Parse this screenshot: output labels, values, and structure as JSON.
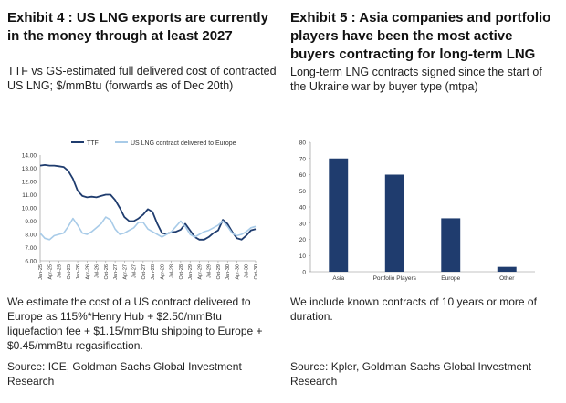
{
  "left": {
    "title": "Exhibit 4 : US LNG exports are currently in the money through at least 2027",
    "subtitle": "TTF vs GS-estimated full delivered cost of contracted US LNG; $/mmBtu (forwards as of Dec 20th)",
    "note": "We estimate the cost of a US contract delivered to Europe as 115%*Henry Hub + $2.50/mmBtu liquefaction fee + $1.15/mmBtu shipping to Europe + $0.45/mmBtu regasification.",
    "source": "Source: ICE, Goldman Sachs Global Investment Research"
  },
  "right": {
    "title": "Exhibit 5 : Asia companies and portfolio players have been the most active buyers contracting for long-term LNG",
    "subtitle": "Long-term LNG contracts signed since the start of the Ukraine war by buyer type (mtpa)",
    "note": "We include known contracts of 10 years or more of duration.",
    "source": "Source: Kpler, Goldman Sachs Global Investment Research"
  },
  "chart_data": [
    {
      "type": "line",
      "ylim": [
        6,
        14
      ],
      "yticks": [
        "14.00",
        "13.00",
        "12.00",
        "11.00",
        "10.00",
        "9.00",
        "8.00",
        "7.00",
        "6.00"
      ],
      "xticks": [
        "Jan-25",
        "Apr-25",
        "Jul-25",
        "Oct-25",
        "Jan-26",
        "Apr-26",
        "Jul-26",
        "Oct-26",
        "Jan-27",
        "Apr-27",
        "Jul-27",
        "Oct-27",
        "Jan-28",
        "Apr-28",
        "Jul-28",
        "Oct-28",
        "Jan-29",
        "Apr-29",
        "Jul-29",
        "Oct-29",
        "Jan-30",
        "Apr-30",
        "Jul-30",
        "Oct-30"
      ],
      "legend_position": "top",
      "series": [
        {
          "name": "TTF",
          "color": "#1f3c6e",
          "x": [
            0,
            0.5,
            1,
            1.5,
            2,
            2.5,
            3,
            3.5,
            4,
            4.5,
            5,
            5.5,
            6,
            6.5,
            7,
            7.5,
            8,
            8.5,
            9,
            9.5,
            10,
            10.5,
            11,
            11.5,
            12,
            12.5,
            13,
            13.5,
            14,
            14.5,
            15,
            15.5,
            16,
            16.5,
            17,
            17.5,
            18,
            18.5,
            19,
            19.5,
            20,
            20.5,
            21,
            21.5,
            22,
            22.5,
            23
          ],
          "values": [
            13.2,
            13.25,
            13.2,
            13.2,
            13.15,
            13.1,
            12.8,
            12.2,
            11.3,
            10.9,
            10.8,
            10.85,
            10.8,
            10.9,
            11.0,
            11.0,
            10.6,
            10.0,
            9.3,
            9.0,
            9.0,
            9.2,
            9.5,
            9.9,
            9.7,
            8.8,
            8.1,
            8.05,
            8.15,
            8.2,
            8.35,
            8.8,
            8.3,
            7.8,
            7.6,
            7.6,
            7.8,
            8.1,
            8.3,
            9.1,
            8.8,
            8.2,
            7.7,
            7.6,
            7.9,
            8.3,
            8.4
          ]
        },
        {
          "name": "US LNG contract delivered to Europe",
          "color": "#a8cbe8",
          "x": [
            0,
            0.5,
            1,
            1.5,
            2,
            2.5,
            3,
            3.5,
            4,
            4.5,
            5,
            5.5,
            6,
            6.5,
            7,
            7.5,
            8,
            8.5,
            9,
            9.5,
            10,
            10.5,
            11,
            11.5,
            12,
            12.5,
            13,
            13.5,
            14,
            14.5,
            15,
            15.5,
            16,
            16.5,
            17,
            17.5,
            18,
            18.5,
            19,
            19.5,
            20,
            20.5,
            21,
            21.5,
            22,
            22.5,
            23
          ],
          "values": [
            8.1,
            7.7,
            7.6,
            7.9,
            8.0,
            8.1,
            8.6,
            9.2,
            8.7,
            8.1,
            8.0,
            8.2,
            8.5,
            8.8,
            9.3,
            9.1,
            8.4,
            8.0,
            8.1,
            8.3,
            8.5,
            8.9,
            8.9,
            8.4,
            8.2,
            8.0,
            7.8,
            8.0,
            8.2,
            8.6,
            9.0,
            8.6,
            8.0,
            7.8,
            8.0,
            8.2,
            8.3,
            8.5,
            8.7,
            9.0,
            8.6,
            8.1,
            7.9,
            8.0,
            8.2,
            8.5,
            8.6
          ]
        }
      ]
    },
    {
      "type": "bar",
      "ylim": [
        0,
        80
      ],
      "yticks": [
        "80",
        "70",
        "60",
        "50",
        "40",
        "30",
        "20",
        "10",
        "0"
      ],
      "categories": [
        "Asia",
        "Portfolio Players",
        "Europe",
        "Other"
      ],
      "values": [
        70,
        60,
        33,
        3
      ],
      "color": "#1f3c6e"
    }
  ]
}
